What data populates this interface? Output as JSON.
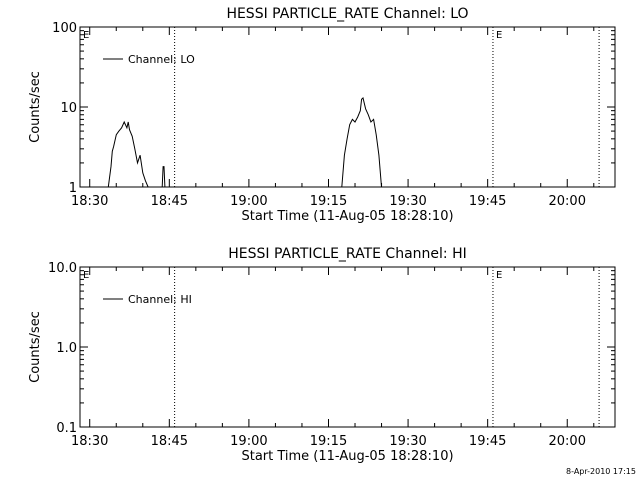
{
  "footer_text": "8-Apr-2010 17:15",
  "chart_data": [
    {
      "type": "line",
      "title": "HESSI PARTICLE_RATE Channel: LO",
      "xlabel": "Start Time (11-Aug-05 18:28:10)",
      "ylabel": "Counts/sec",
      "y_scale": "log",
      "ylim": [
        1,
        100
      ],
      "y_ticks": [
        1,
        10,
        100
      ],
      "y_tick_labels": [
        "1",
        "10",
        "100"
      ],
      "xlim": [
        "18:28:10",
        "20:09:00"
      ],
      "x_tick_labels": [
        "18:30",
        "18:45",
        "19:00",
        "19:15",
        "19:30",
        "19:45",
        "20:00"
      ],
      "legend": {
        "position": "top-left",
        "entries": [
          "Channel: LO"
        ]
      },
      "markers": [
        {
          "time": "18:46:00",
          "label": ""
        },
        {
          "time": "19:46:00",
          "label": "E"
        },
        {
          "time": "20:06:00",
          "label": ""
        }
      ],
      "corner_label": "E",
      "series": [
        {
          "name": "Channel: LO",
          "segments": [
            [
              [
                "18:33:30",
                1.0
              ],
              [
                "18:34:00",
                1.8
              ],
              [
                "18:34:15",
                2.8
              ],
              [
                "18:34:30",
                3.2
              ],
              [
                "18:35:00",
                4.5
              ],
              [
                "18:35:30",
                5.0
              ],
              [
                "18:36:00",
                5.5
              ],
              [
                "18:36:30",
                6.5
              ],
              [
                "18:37:00",
                5.5
              ],
              [
                "18:37:15",
                6.5
              ],
              [
                "18:37:30",
                5.2
              ],
              [
                "18:38:00",
                4.3
              ],
              [
                "18:38:30",
                3.0
              ],
              [
                "18:39:00",
                2.0
              ],
              [
                "18:39:30",
                2.5
              ],
              [
                "18:40:00",
                1.5
              ],
              [
                "18:40:30",
                1.2
              ],
              [
                "18:41:00",
                1.0
              ]
            ],
            [
              [
                "18:43:40",
                1.0
              ],
              [
                "18:43:50",
                1.8
              ],
              [
                "18:44:00",
                1.8
              ],
              [
                "18:44:10",
                1.0
              ]
            ],
            [
              [
                "19:17:30",
                1.0
              ],
              [
                "19:18:00",
                2.5
              ],
              [
                "19:18:30",
                4.0
              ],
              [
                "19:19:00",
                6.0
              ],
              [
                "19:19:30",
                7.0
              ],
              [
                "19:20:00",
                6.5
              ],
              [
                "19:20:30",
                7.5
              ],
              [
                "19:21:00",
                9.0
              ],
              [
                "19:21:15",
                12.5
              ],
              [
                "19:21:30",
                13.0
              ],
              [
                "19:22:00",
                9.5
              ],
              [
                "19:22:30",
                8.0
              ],
              [
                "19:23:00",
                6.5
              ],
              [
                "19:23:30",
                7.0
              ],
              [
                "19:24:00",
                4.5
              ],
              [
                "19:24:30",
                2.5
              ],
              [
                "19:25:00",
                1.0
              ]
            ]
          ]
        }
      ]
    },
    {
      "type": "line",
      "title": "HESSI PARTICLE_RATE Channel: HI",
      "xlabel": "Start Time (11-Aug-05 18:28:10)",
      "ylabel": "Counts/sec",
      "y_scale": "log",
      "ylim": [
        0.1,
        10
      ],
      "y_ticks": [
        0.1,
        1,
        10
      ],
      "y_tick_labels": [
        "0.1",
        "1.0",
        "10.0"
      ],
      "xlim": [
        "18:28:10",
        "20:09:00"
      ],
      "x_tick_labels": [
        "18:30",
        "18:45",
        "19:00",
        "19:15",
        "19:30",
        "19:45",
        "20:00"
      ],
      "legend": {
        "position": "top-left",
        "entries": [
          "Channel: HI"
        ]
      },
      "markers": [
        {
          "time": "18:46:00",
          "label": ""
        },
        {
          "time": "19:46:00",
          "label": "E"
        },
        {
          "time": "20:06:00",
          "label": ""
        }
      ],
      "corner_label": "E",
      "series": [
        {
          "name": "Channel: HI",
          "segments": []
        }
      ]
    }
  ]
}
